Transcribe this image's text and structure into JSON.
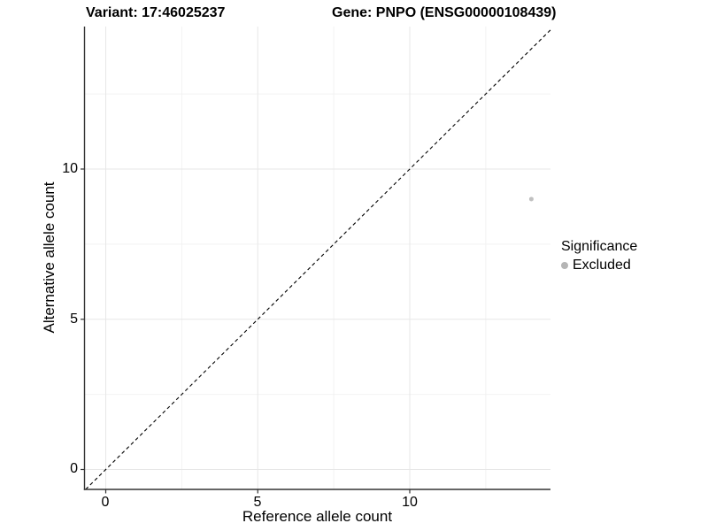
{
  "chart_data": {
    "type": "scatter",
    "titles": {
      "variant": "Variant: 17:46025237",
      "gene": "Gene: PNPO (ENSG00000108439)"
    },
    "xlabel": "Reference allele count",
    "ylabel": "Alternative allele count",
    "x_tick_labels": [
      "0",
      "5",
      "10"
    ],
    "y_tick_labels": [
      "0",
      "5",
      "10"
    ],
    "x_major": [
      0,
      5,
      10
    ],
    "x_minor": [
      2.5,
      7.5,
      12.5
    ],
    "y_major": [
      0,
      5,
      10
    ],
    "y_minor": [
      2.5,
      7.5,
      12.5
    ],
    "xlim": [
      -0.7,
      14.63
    ],
    "ylim": [
      -0.66,
      14.74
    ],
    "grid": true,
    "identity_line": {
      "style": "dashed",
      "equation": "y = x",
      "color": "#000000"
    },
    "series": [
      {
        "name": "Excluded",
        "color": "#c0c0c0",
        "points": [
          {
            "x": 14,
            "y": 9
          }
        ]
      }
    ],
    "legend": {
      "title": "Significance",
      "position": "right",
      "entries": [
        {
          "label": "Excluded",
          "color": "#b5b5b5"
        }
      ]
    },
    "colors": {
      "grid_major": "#e7e7e7",
      "grid_minor": "#f2f2f2",
      "axis": "#333333"
    }
  }
}
